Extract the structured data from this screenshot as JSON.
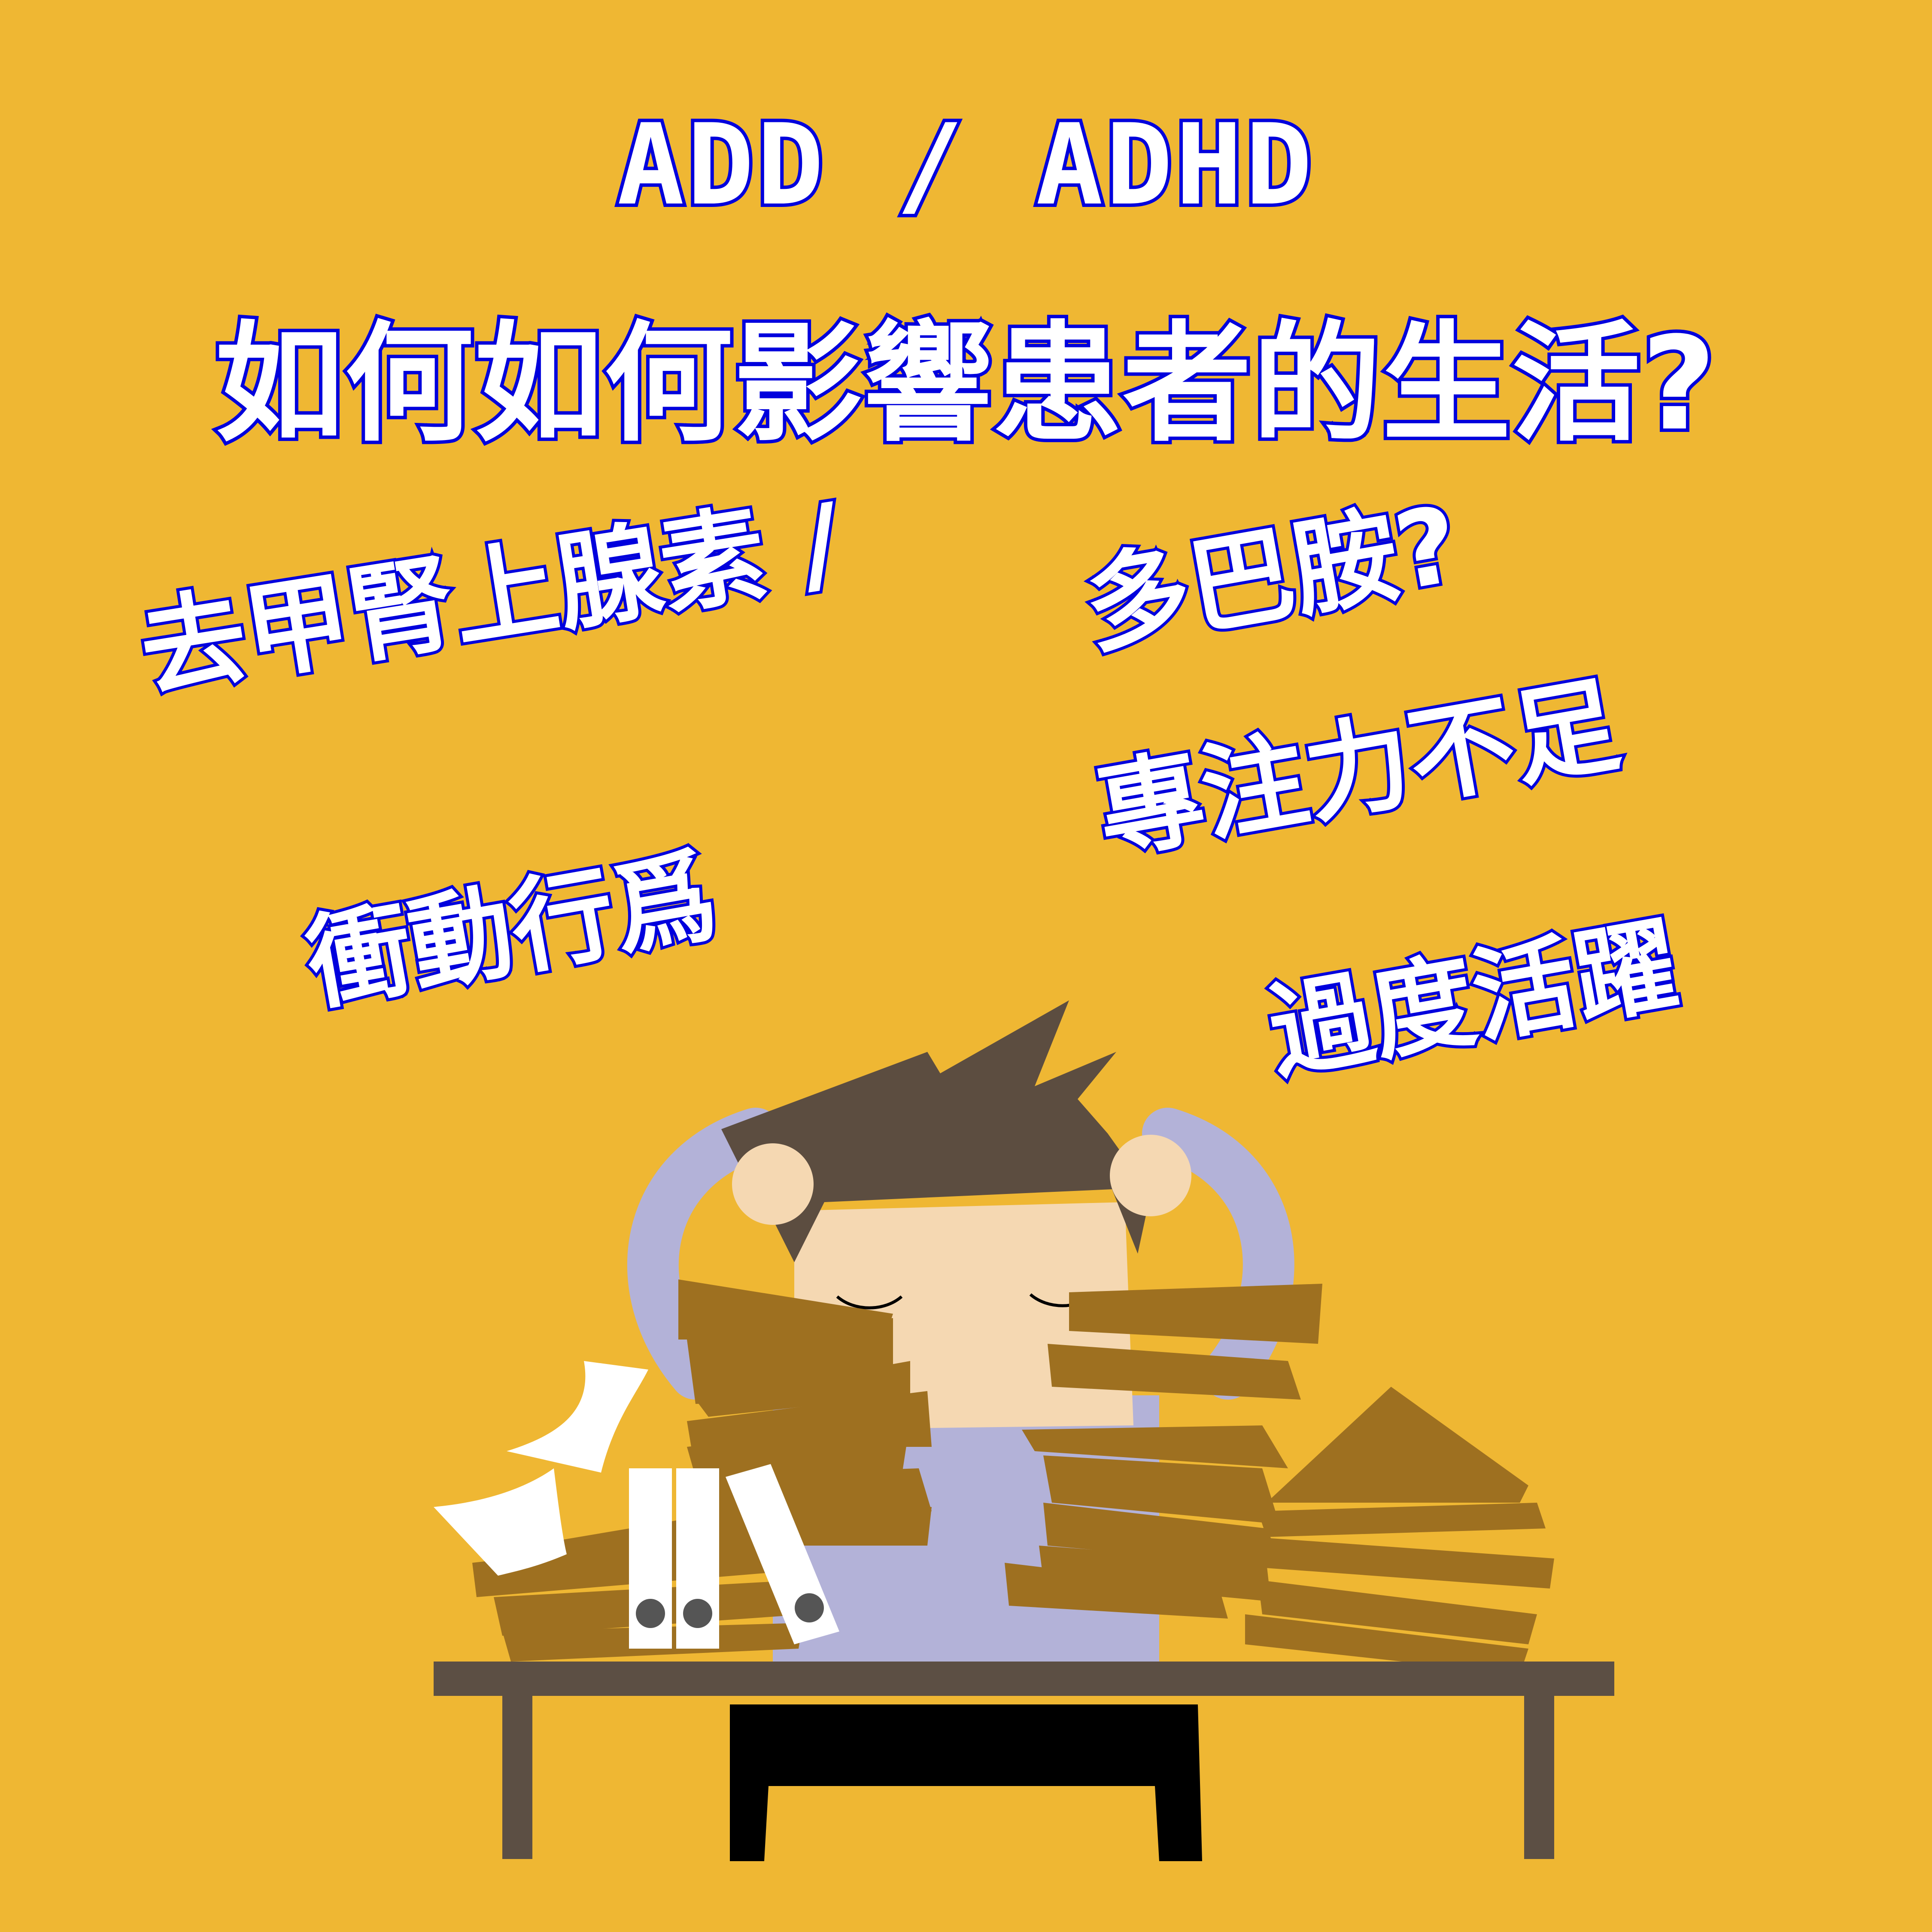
{
  "title": {
    "line1": "ADD / ADHD",
    "line2": "如何如何影響患者的生活?"
  },
  "tags": [
    "去甲腎上腺素 / ",
    "多巴胺?",
    "專注力不足",
    "衝動行爲",
    "過度活躍"
  ],
  "colors": {
    "background": "#EFB733",
    "text_fill": "#FFFFFF",
    "text_outline": "#0000DD",
    "hair": "#5C4D40",
    "skin": "#F5D8B2",
    "shirt": "#B3B2D8",
    "papers": "#9E7020",
    "desk": "#5C4F44",
    "binder": "#FFFFFF"
  }
}
